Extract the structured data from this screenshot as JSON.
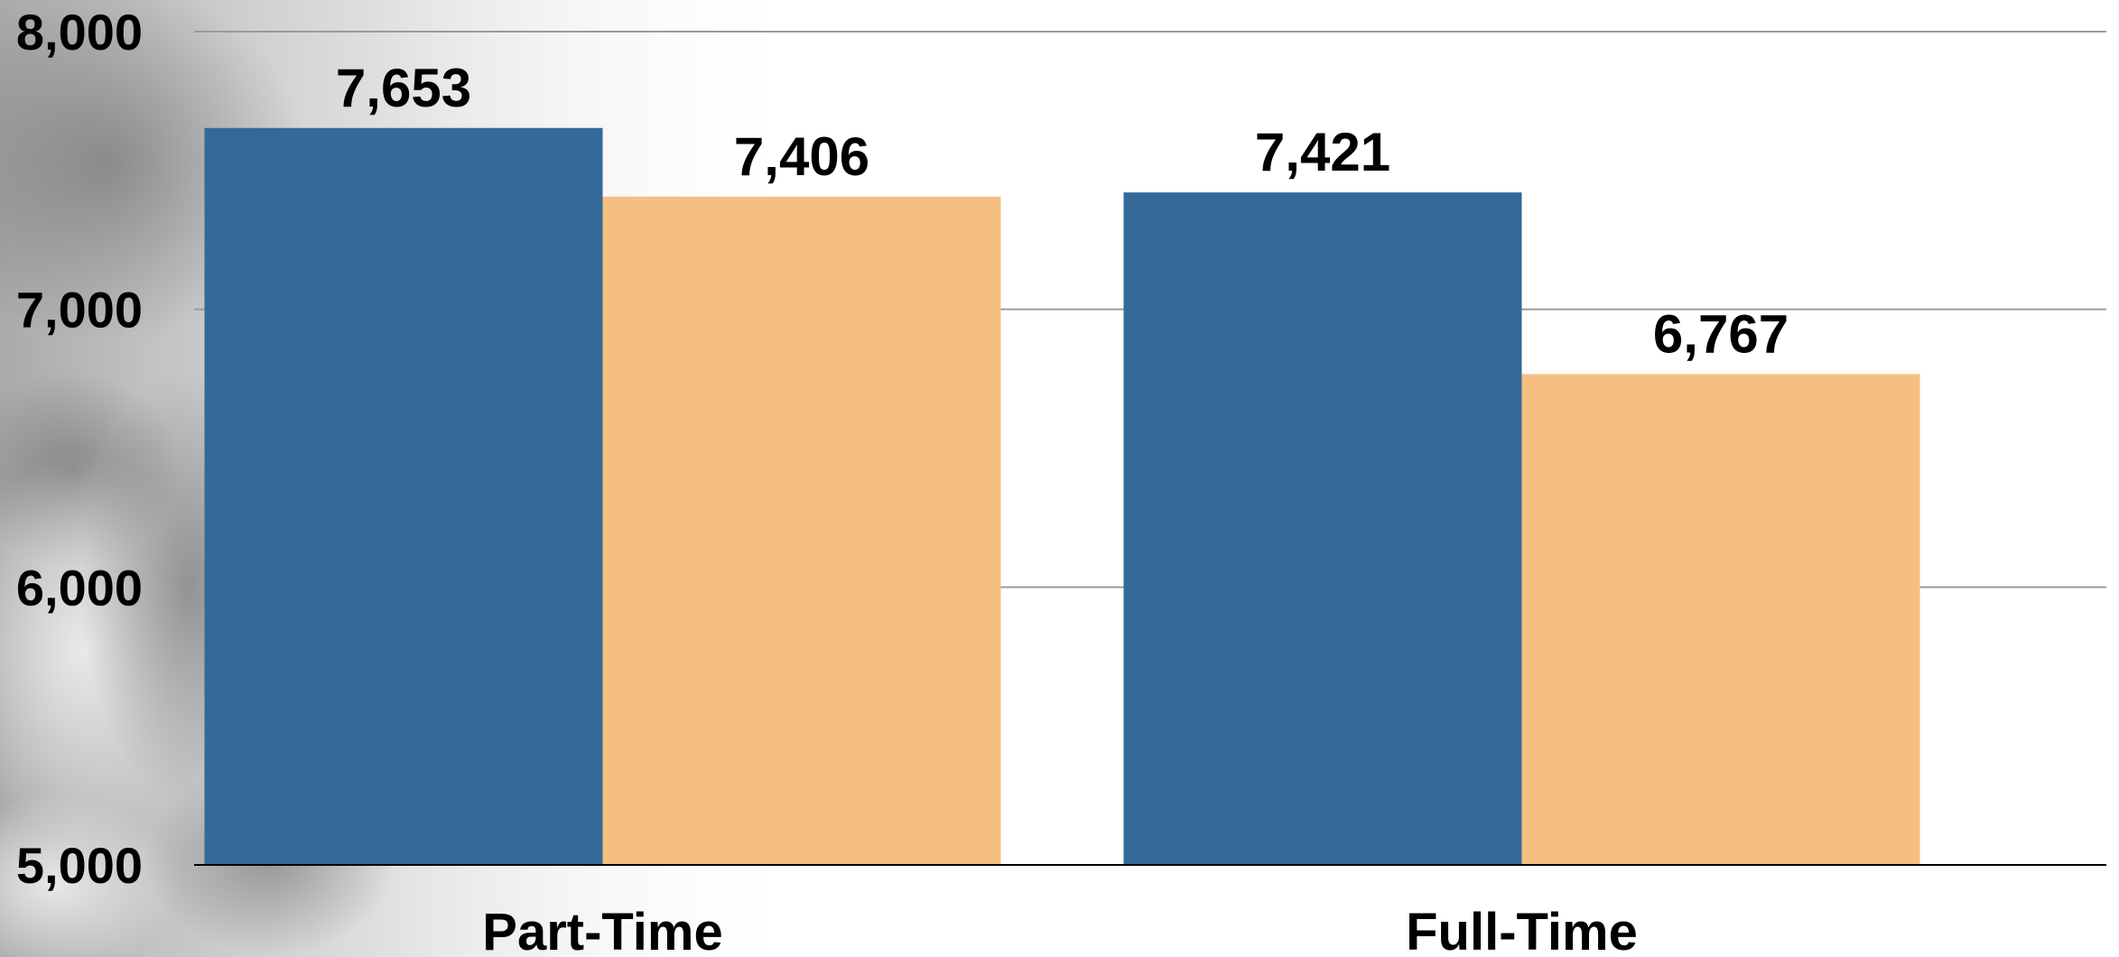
{
  "chart_data": {
    "type": "bar",
    "categories": [
      "Part-Time",
      "Full-Time"
    ],
    "series": [
      {
        "values": [
          7653,
          7421
        ],
        "color": "#336A98"
      },
      {
        "values": [
          7406,
          6767
        ],
        "color": "#F6BF82"
      }
    ],
    "data_labels": [
      [
        "7,653",
        "7,421"
      ],
      [
        "7,406",
        "6,767"
      ]
    ],
    "yticks": [
      "5,000",
      "6,000",
      "7,000",
      "8,000"
    ],
    "ylim": [
      5000,
      8000
    ],
    "ytick_values": [
      5000,
      6000,
      7000,
      8000
    ],
    "grid": true,
    "legend": "none"
  }
}
